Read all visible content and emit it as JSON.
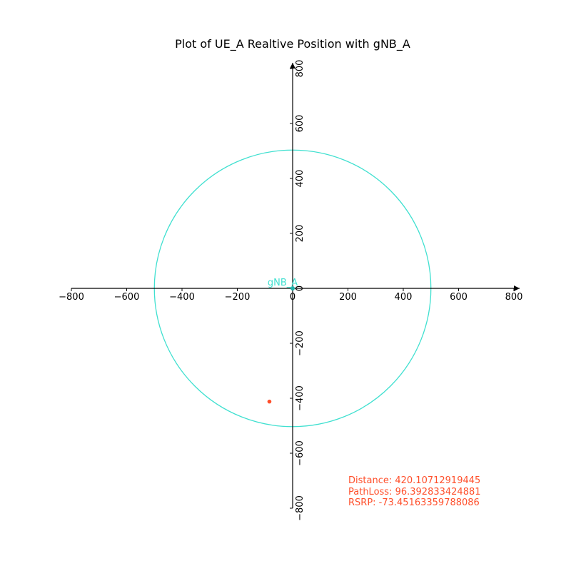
{
  "chart_data": {
    "type": "scatter",
    "title": "Plot of UE_A Realtive Position with gNB_A",
    "xlabel": "",
    "ylabel": "",
    "xlim": [
      -800,
      800
    ],
    "ylim": [
      -800,
      800
    ],
    "x_ticks": [
      -800,
      -600,
      -400,
      -200,
      0,
      200,
      400,
      600,
      800
    ],
    "y_ticks": [
      -800,
      -600,
      -400,
      -200,
      0,
      200,
      400,
      600,
      800
    ],
    "x_tick_labels": [
      "−800",
      "−600",
      "−400",
      "−200",
      "0",
      "200",
      "400",
      "600",
      "800"
    ],
    "y_tick_labels": [
      "−800",
      "−600",
      "−400",
      "−200",
      "0",
      "200",
      "400",
      "600",
      "800"
    ],
    "spines": "centered at origin",
    "grid": false,
    "coverage_circle": {
      "center": [
        0,
        0
      ],
      "radius": 500,
      "color": "#40e0d0"
    },
    "gnb": {
      "label": "gNB_A",
      "x": 0,
      "y": 0,
      "color": "#20b2aa"
    },
    "ue": {
      "x": -84,
      "y": -412,
      "color": "#ff4f2b"
    },
    "annotations": [
      "Distance: 420.10712919445",
      "PathLoss: 96.392833424881",
      "RSRP: -73.45163359788086"
    ],
    "annotation_color": "#ff4f2b",
    "axis_color": "#000000"
  }
}
